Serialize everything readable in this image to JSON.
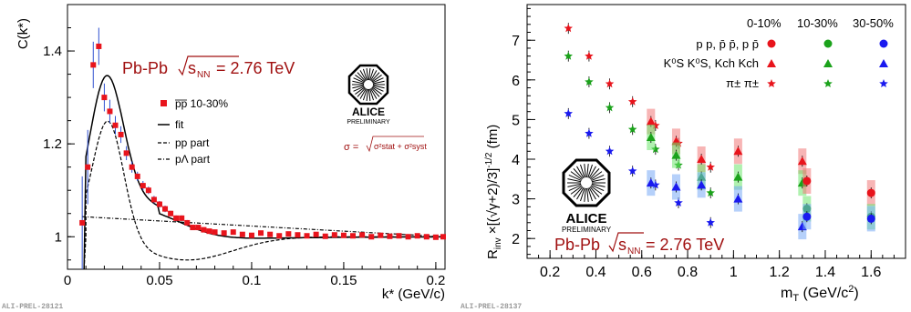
{
  "chart_data": [
    {
      "type": "scatter",
      "ylabel": "C(k*)",
      "xlabel": "k* (GeV/c)",
      "xlim": [
        0,
        0.205
      ],
      "ylim": [
        0.93,
        1.5
      ],
      "x_ticks": [
        "0",
        "0.05",
        "0.1",
        "0.15",
        "0.2"
      ],
      "y_ticks": [
        "1",
        "1.2",
        "1.4"
      ],
      "system_label": "Pb-Pb",
      "energy_label": "= 2.76 TeV",
      "sqrt_label": "s",
      "nn_sub": "NN",
      "legend": {
        "data": "pp 10-30%",
        "fit": "fit",
        "pp_part": "pp part",
        "plambda_part": "pΛ part"
      },
      "sigma_label": "σ =",
      "sigma_stat": "σ²stat + σ²syst",
      "logo_text": "ALICE",
      "logo_sub": "PRELIMINARY",
      "footer_id": "ALI-PREL-28121",
      "series": [
        {
          "name": "pp 10-30%",
          "x": [
            0.008,
            0.011,
            0.014,
            0.017,
            0.02,
            0.023,
            0.026,
            0.029,
            0.032,
            0.035,
            0.038,
            0.041,
            0.044,
            0.047,
            0.05,
            0.053,
            0.056,
            0.059,
            0.062,
            0.065,
            0.068,
            0.071,
            0.074,
            0.077,
            0.08,
            0.085,
            0.09,
            0.095,
            0.1,
            0.105,
            0.11,
            0.115,
            0.12,
            0.125,
            0.13,
            0.135,
            0.14,
            0.145,
            0.15,
            0.155,
            0.16,
            0.165,
            0.17,
            0.175,
            0.18,
            0.185,
            0.19,
            0.195,
            0.2,
            0.204
          ],
          "y": [
            1.03,
            1.15,
            1.37,
            1.41,
            1.3,
            1.27,
            1.24,
            1.22,
            1.18,
            1.15,
            1.13,
            1.11,
            1.1,
            1.08,
            1.07,
            1.06,
            1.05,
            1.04,
            1.04,
            1.03,
            1.02,
            1.02,
            1.015,
            1.012,
            1.01,
            1.008,
            1.01,
            1.005,
            1.003,
            1.008,
            1.005,
            1.002,
            1.006,
            1.004,
            1.002,
            1.005,
            1.001,
            1.004,
            1.003,
            1.002,
            1.004,
            1.0,
            1.003,
            1.001,
            1.002,
            1.0,
            1.002,
            1.0,
            0.999,
            1.0
          ],
          "err": [
            0.1,
            0.08,
            0.05,
            0.04,
            0.03,
            0.025,
            0.02,
            0.018,
            0.015,
            0.012,
            0.01,
            0.01,
            0.008,
            0.008,
            0.007,
            0.007,
            0.006,
            0.006,
            0.006,
            0.006,
            0.005,
            0.005,
            0.005,
            0.005,
            0.005,
            0.005,
            0.005,
            0.005,
            0.005,
            0.005,
            0.005,
            0.005,
            0.005,
            0.005,
            0.005,
            0.005,
            0.005,
            0.005,
            0.005,
            0.005,
            0.005,
            0.005,
            0.005,
            0.005,
            0.005,
            0.005,
            0.005,
            0.005,
            0.005,
            0.005
          ]
        }
      ]
    },
    {
      "type": "scatter",
      "ylabel": "R",
      "ylabel_inv": "inv",
      "ylabel_rest": " ×[(√γ+2)/3]",
      "ylabel_exp": "-1/2",
      "ylabel_unit": " (fm)",
      "xlabel": "m",
      "xlabel_sub": "T",
      "xlabel_rest": " (GeV/c",
      "xlabel_sup": "2",
      "xlabel_close": ")",
      "xlim": [
        0.1,
        1.75
      ],
      "ylim": [
        1.5,
        7.9
      ],
      "x_ticks": [
        "0.2",
        "0.4",
        "0.6",
        "0.8",
        "1",
        "1.2",
        "1.4",
        "1.6"
      ],
      "y_ticks": [
        "2",
        "3",
        "4",
        "5",
        "6",
        "7"
      ],
      "centralities": [
        "0-10%",
        "10-30%",
        "30-50%"
      ],
      "legend_rows": [
        "p p, p̄ p̄, p p̄",
        "K⁰S K⁰S, Kch Kch",
        "π± π±"
      ],
      "system_label": "Pb-Pb",
      "energy_label": "= 2.76 TeV",
      "sqrt_label": "s",
      "nn_sub": "NN",
      "logo_text": "ALICE",
      "logo_sub": "PRELIMINARY",
      "footer_id": "ALI-PREL-28137",
      "colors": {
        "c0": "#e8141c",
        "c1": "#1ba21b",
        "c2": "#1a1aef"
      },
      "series": [
        {
          "name": "pion 0-10%",
          "marker": "star",
          "cent": 0,
          "x": [
            0.28,
            0.37,
            0.46,
            0.56,
            0.66,
            0.76,
            0.9
          ],
          "y": [
            7.3,
            6.6,
            5.9,
            5.45,
            4.85,
            4.4,
            3.8
          ]
        },
        {
          "name": "pion 10-30%",
          "marker": "star",
          "cent": 1,
          "x": [
            0.28,
            0.37,
            0.46,
            0.56,
            0.66,
            0.76,
            0.9
          ],
          "y": [
            6.6,
            5.95,
            5.3,
            4.75,
            4.25,
            3.85,
            3.15
          ]
        },
        {
          "name": "pion 30-50%",
          "marker": "star",
          "cent": 2,
          "x": [
            0.28,
            0.37,
            0.46,
            0.56,
            0.66,
            0.76,
            0.9
          ],
          "y": [
            5.15,
            4.65,
            4.2,
            3.7,
            3.35,
            2.9,
            2.4
          ]
        },
        {
          "name": "kaon 0-10%",
          "marker": "tri",
          "cent": 0,
          "x": [
            0.64,
            0.75,
            0.86,
            1.02,
            1.3
          ],
          "y": [
            4.95,
            4.45,
            4.0,
            4.2,
            3.95
          ]
        },
        {
          "name": "kaon 10-30%",
          "marker": "tri",
          "cent": 1,
          "x": [
            0.64,
            0.75,
            0.86,
            1.02,
            1.3
          ],
          "y": [
            4.55,
            4.1,
            3.55,
            3.55,
            3.4
          ]
        },
        {
          "name": "kaon 30-50%",
          "marker": "tri",
          "cent": 2,
          "x": [
            0.64,
            0.75,
            0.86,
            1.02,
            1.3
          ],
          "y": [
            3.4,
            3.3,
            3.35,
            3.0,
            2.3
          ]
        },
        {
          "name": "proton 0-10%",
          "marker": "circle",
          "cent": 0,
          "x": [
            1.32,
            1.6
          ],
          "y": [
            3.45,
            3.15
          ]
        },
        {
          "name": "proton 10-30%",
          "marker": "circle",
          "cent": 1,
          "x": [
            1.32,
            1.6
          ],
          "y": [
            2.75,
            2.55
          ]
        },
        {
          "name": "proton 30-50%",
          "marker": "circle",
          "cent": 2,
          "x": [
            1.32,
            1.6
          ],
          "y": [
            2.55,
            2.5
          ]
        }
      ]
    }
  ]
}
